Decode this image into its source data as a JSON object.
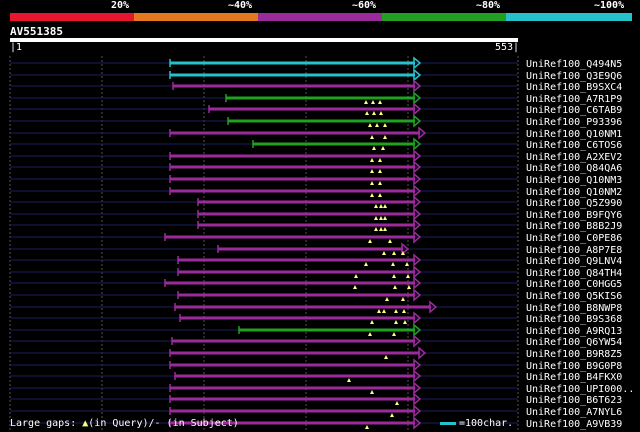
{
  "legend": {
    "labels": [
      "20%",
      "~40%",
      "~60%",
      "~80%",
      "~100%"
    ],
    "colors": [
      "#e8152f",
      "#e5781f",
      "#9b2a9b",
      "#21a021",
      "#25c2cc"
    ]
  },
  "query": {
    "title": "AV551385",
    "start_label": "|1",
    "end_label": "553|",
    "length": 553
  },
  "footer": {
    "gaps_prefix": "Large gaps: ",
    "gaps_query": "(in Query)",
    "gaps_subject": "/- (in Subject)",
    "scale_label": "=100char."
  },
  "hits": [
    {
      "id": "UniRef100_Q494N5",
      "start": 170,
      "end": 420,
      "color": "#25c2cc",
      "gaps": []
    },
    {
      "id": "UniRef100_Q3E9Q6",
      "start": 170,
      "end": 420,
      "color": "#25c2cc",
      "gaps": []
    },
    {
      "id": "UniRef100_B9SXC4",
      "start": 173,
      "end": 420,
      "color": "#9b2a9b",
      "gaps": []
    },
    {
      "id": "UniRef100_A7R1P9",
      "start": 226,
      "end": 420,
      "color": "#21a021",
      "gaps": [
        366,
        373,
        380
      ]
    },
    {
      "id": "UniRef100_C6TAB9",
      "start": 209,
      "end": 420,
      "color": "#9b2a9b",
      "gaps": [
        367,
        374,
        381
      ]
    },
    {
      "id": "UniRef100_P93396",
      "start": 228,
      "end": 420,
      "color": "#21a021",
      "gaps": [
        370,
        377,
        385
      ]
    },
    {
      "id": "UniRef100_Q10NM1",
      "start": 170,
      "end": 425,
      "color": "#9b2a9b",
      "gaps": [
        372,
        385
      ]
    },
    {
      "id": "UniRef100_C6TOS6",
      "start": 253,
      "end": 420,
      "color": "#21a021",
      "gaps": [
        374,
        383
      ]
    },
    {
      "id": "UniRef100_A2XEV2",
      "start": 170,
      "end": 420,
      "color": "#9b2a9b",
      "gaps": [
        372,
        380
      ]
    },
    {
      "id": "UniRef100_Q84QA6",
      "start": 170,
      "end": 420,
      "color": "#9b2a9b",
      "gaps": [
        372,
        380
      ]
    },
    {
      "id": "UniRef100_Q10NM3",
      "start": 170,
      "end": 420,
      "color": "#9b2a9b",
      "gaps": [
        372,
        380
      ]
    },
    {
      "id": "UniRef100_Q10NM2",
      "start": 170,
      "end": 420,
      "color": "#9b2a9b",
      "gaps": [
        372,
        380
      ]
    },
    {
      "id": "UniRef100_Q5Z990",
      "start": 198,
      "end": 420,
      "color": "#9b2a9b",
      "gaps": [
        376,
        381,
        385
      ]
    },
    {
      "id": "UniRef100_B9FQY6",
      "start": 198,
      "end": 420,
      "color": "#9b2a9b",
      "gaps": [
        376,
        381,
        385
      ]
    },
    {
      "id": "UniRef100_B8B2J9",
      "start": 198,
      "end": 420,
      "color": "#9b2a9b",
      "gaps": [
        376,
        381,
        385
      ]
    },
    {
      "id": "UniRef100_C0PE86",
      "start": 165,
      "end": 420,
      "color": "#9b2a9b",
      "gaps": [
        370,
        390
      ]
    },
    {
      "id": "UniRef100_A8P7E8",
      "start": 218,
      "end": 408,
      "color": "#9b2a9b",
      "gaps": [
        384,
        394,
        403
      ]
    },
    {
      "id": "UniRef100_Q9LNV4",
      "start": 178,
      "end": 420,
      "color": "#9b2a9b",
      "gaps": [
        366,
        393,
        407
      ]
    },
    {
      "id": "UniRef100_Q84TH4",
      "start": 178,
      "end": 420,
      "color": "#9b2a9b",
      "gaps": [
        356,
        394,
        408
      ]
    },
    {
      "id": "UniRef100_C0HGG5",
      "start": 165,
      "end": 420,
      "color": "#9b2a9b",
      "gaps": [
        355,
        395,
        409
      ]
    },
    {
      "id": "UniRef100_Q5KIS6",
      "start": 178,
      "end": 420,
      "color": "#9b2a9b",
      "gaps": [
        387,
        403
      ]
    },
    {
      "id": "UniRef100_B8NWP8",
      "start": 175,
      "end": 436,
      "color": "#9b2a9b",
      "gaps": [
        379,
        384,
        396,
        404
      ]
    },
    {
      "id": "UniRef100_B9S368",
      "start": 180,
      "end": 420,
      "color": "#9b2a9b",
      "gaps": [
        372,
        396,
        405
      ]
    },
    {
      "id": "UniRef100_A9RQ13",
      "start": 239,
      "end": 420,
      "color": "#21a021",
      "gaps": [
        370,
        394
      ]
    },
    {
      "id": "UniRef100_Q6YW54",
      "start": 172,
      "end": 420,
      "color": "#9b2a9b",
      "gaps": []
    },
    {
      "id": "UniRef100_B9R8Z5",
      "start": 170,
      "end": 425,
      "color": "#9b2a9b",
      "gaps": [
        386
      ]
    },
    {
      "id": "UniRef100_B9G0P8",
      "start": 170,
      "end": 420,
      "color": "#9b2a9b",
      "gaps": []
    },
    {
      "id": "UniRef100_B4FKX0",
      "start": 175,
      "end": 420,
      "color": "#9b2a9b",
      "gaps": [
        349
      ]
    },
    {
      "id": "UniRef100_UPI000..",
      "start": 170,
      "end": 420,
      "color": "#9b2a9b",
      "gaps": [
        372
      ]
    },
    {
      "id": "UniRef100_B6T623",
      "start": 170,
      "end": 420,
      "color": "#9b2a9b",
      "gaps": [
        397
      ]
    },
    {
      "id": "UniRef100_A7NYL6",
      "start": 170,
      "end": 420,
      "color": "#9b2a9b",
      "gaps": [
        392
      ]
    },
    {
      "id": "UniRef100_A9VB39",
      "start": 170,
      "end": 420,
      "color": "#9b2a9b",
      "gaps": [
        367
      ]
    }
  ]
}
